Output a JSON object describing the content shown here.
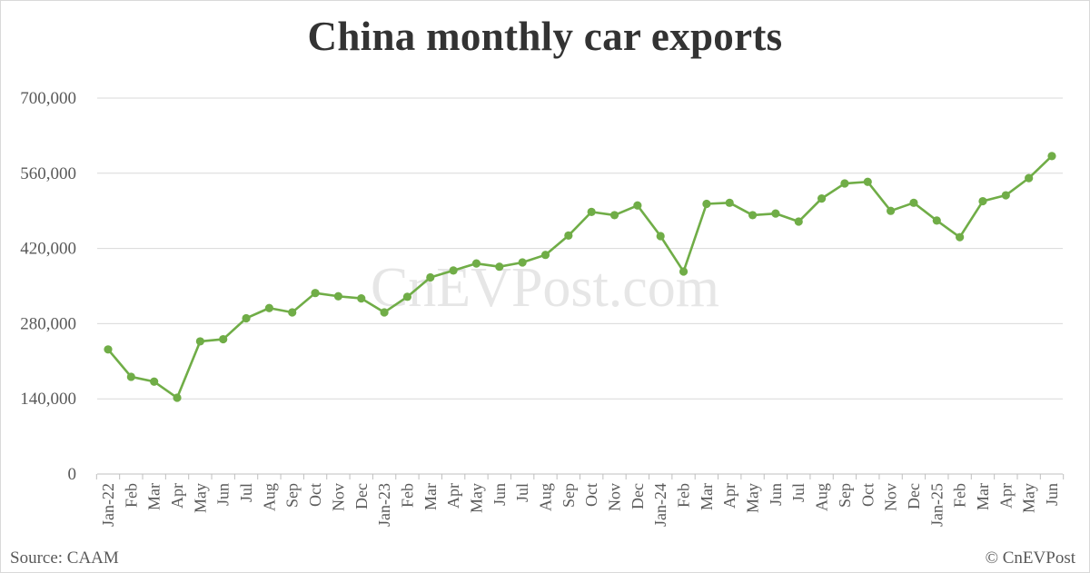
{
  "chart_data": {
    "type": "line",
    "title": "China monthly car exports",
    "xlabel": "",
    "ylabel": "",
    "ylim": [
      0,
      700000
    ],
    "yticks": [
      "0",
      "140,000",
      "280,000",
      "420,000",
      "560,000",
      "700,000"
    ],
    "ytick_values": [
      0,
      140000,
      280000,
      420000,
      560000,
      700000
    ],
    "grid": true,
    "legend": "none",
    "categories": [
      "Jan-22",
      "Feb",
      "Mar",
      "Apr",
      "May",
      "Jun",
      "Jul",
      "Aug",
      "Sep",
      "Oct",
      "Nov",
      "Dec",
      "Jan-23",
      "Feb",
      "Mar",
      "Apr",
      "May",
      "Jun",
      "Jul",
      "Aug",
      "Sep",
      "Oct",
      "Nov",
      "Dec",
      "Jan-24",
      "Feb",
      "Mar",
      "Apr",
      "May",
      "Jun",
      "Jul",
      "Aug",
      "Sep",
      "Oct",
      "Nov",
      "Dec",
      "Jan-25",
      "Feb",
      "Mar",
      "Apr",
      "May",
      "Jun"
    ],
    "series": [
      {
        "color": "#70ad47",
        "values": [
          232000,
          181000,
          172000,
          142000,
          247000,
          251000,
          290000,
          309000,
          301000,
          337000,
          331000,
          327000,
          301000,
          330000,
          366000,
          379000,
          392000,
          386000,
          394000,
          408000,
          444000,
          488000,
          482000,
          500000,
          443000,
          377000,
          503000,
          505000,
          482000,
          485000,
          470000,
          513000,
          541000,
          544000,
          490000,
          505000,
          472000,
          441000,
          508000,
          519000,
          551000,
          592000
        ]
      }
    ]
  },
  "watermark": "CnEVPost.com",
  "footer": {
    "source": "Source: CAAM",
    "credit": "© CnEVPost"
  }
}
